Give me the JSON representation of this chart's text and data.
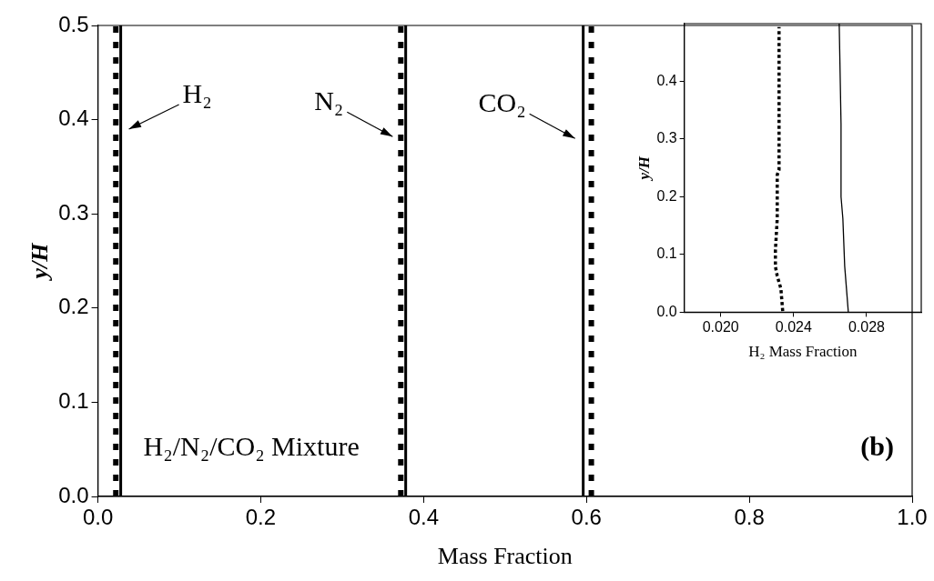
{
  "chart_data": [
    {
      "type": "line",
      "xlabel": "Mass Fraction",
      "ylabel": "y/H",
      "xlim": [
        0,
        1
      ],
      "xticks": [
        {
          "value": 0,
          "label": "0.0"
        },
        0.2,
        0.4,
        0.6,
        0.8,
        {
          "value": 1,
          "label": "1.0"
        }
      ],
      "ylim": [
        0,
        0.5
      ],
      "yticks": [
        {
          "value": 0,
          "label": "0.0"
        },
        0.1,
        0.2,
        0.3,
        0.4,
        0.5
      ],
      "grid": false,
      "legend": false,
      "marker": "none",
      "series": [
        {
          "color": "#000000",
          "line_style": "dotted",
          "x": [
            0.022,
            0.022
          ],
          "values": [
            0,
            0.5
          ]
        },
        {
          "color": "#000000",
          "line_style": "solid",
          "x": [
            0.028,
            0.028
          ],
          "values": [
            0,
            0.5
          ]
        },
        {
          "color": "#000000",
          "line_style": "dotted",
          "x": [
            0.372,
            0.372
          ],
          "values": [
            0,
            0.5
          ]
        },
        {
          "color": "#000000",
          "line_style": "solid",
          "x": [
            0.378,
            0.378
          ],
          "values": [
            0,
            0.5
          ]
        },
        {
          "color": "#000000",
          "line_style": "solid",
          "x": [
            0.596,
            0.596
          ],
          "values": [
            0,
            0.5
          ]
        },
        {
          "color": "#000000",
          "line_style": "dotted",
          "x": [
            0.606,
            0.606
          ],
          "values": [
            0,
            0.5
          ]
        }
      ],
      "annotations": [
        {
          "text": "H₂",
          "x": 0.028,
          "y": 0.39
        },
        {
          "text": "N₂",
          "x": 0.372,
          "y": 0.382
        },
        {
          "text": "CO₂",
          "x": 0.596,
          "y": 0.38
        },
        "H₂/N₂/CO₂ Mixture",
        "(b)"
      ]
    },
    {
      "type": "line",
      "xlabel": "H₂ Mass Fraction",
      "ylabel": "y/H",
      "xlim": [
        0.018,
        0.031
      ],
      "xticks": [
        {
          "value": 0.02,
          "label": "0.020"
        },
        0.024,
        0.028
      ],
      "ylim": [
        0,
        0.5
      ],
      "yticks": [
        {
          "value": 0,
          "label": "0.0"
        },
        0.1,
        0.2,
        0.3,
        0.4
      ],
      "grid": false,
      "legend": false,
      "marker": "none",
      "series": [
        {
          "color": "#000000",
          "line_style": "dotted",
          "x": [
            0.0234,
            0.0233,
            0.0231,
            0.023,
            0.023,
            0.0231,
            0.0231,
            0.0232,
            0.0232,
            0.0232,
            0.0232
          ],
          "values": [
            0.002,
            0.041,
            0.063,
            0.079,
            0.107,
            0.162,
            0.238,
            0.247,
            0.326,
            0.436,
            0.494
          ]
        },
        {
          "color": "#000000",
          "line_style": "solid",
          "x": [
            0.027,
            0.0268,
            0.0267,
            0.0266,
            0.0266,
            0.0265
          ],
          "values": [
            0,
            0.08,
            0.162,
            0.2,
            0.326,
            0.5
          ]
        }
      ]
    }
  ]
}
